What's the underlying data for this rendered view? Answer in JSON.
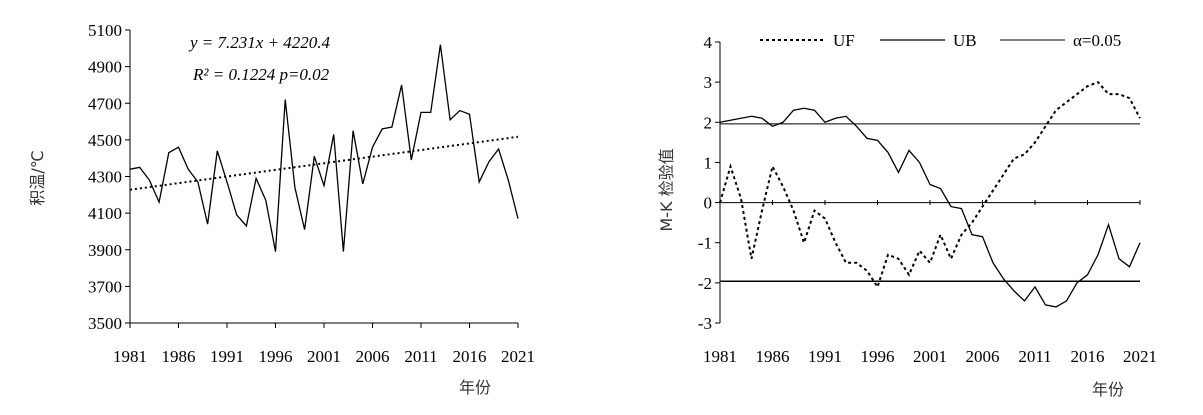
{
  "chart_data": [
    {
      "type": "line",
      "ylabel": "积温/℃",
      "xlabel": "年份",
      "xlim": [
        1981,
        2021
      ],
      "ylim": [
        3500,
        5100
      ],
      "xticks": [
        1981,
        1986,
        1991,
        1996,
        2001,
        2006,
        2011,
        2016,
        2021
      ],
      "yticks": [
        3500,
        3700,
        3900,
        4100,
        4300,
        4500,
        4700,
        4900,
        5100
      ],
      "equation": "y = 7.231x + 4220.4",
      "r2_label": "R² = 0.1224 p=0.02",
      "x": [
        1981,
        1982,
        1983,
        1984,
        1985,
        1986,
        1987,
        1988,
        1989,
        1990,
        1991,
        1992,
        1993,
        1994,
        1995,
        1996,
        1997,
        1998,
        1999,
        2000,
        2001,
        2002,
        2003,
        2004,
        2005,
        2006,
        2007,
        2008,
        2009,
        2010,
        2011,
        2012,
        2013,
        2014,
        2015,
        2016,
        2017,
        2018,
        2019,
        2020,
        2021
      ],
      "series": [
        {
          "style": "solid",
          "values": [
            4340,
            4350,
            4280,
            4160,
            4430,
            4460,
            4340,
            4270,
            4040,
            4440,
            4270,
            4090,
            4030,
            4290,
            4170,
            3890,
            4720,
            4240,
            4010,
            4410,
            4250,
            4530,
            3890,
            4550,
            4260,
            4460,
            4560,
            4570,
            4800,
            4390,
            4650,
            4650,
            5020,
            4610,
            4660,
            4640,
            4270,
            4380,
            4450,
            4280,
            4070
          ]
        },
        {
          "style": "dotted",
          "trend": true,
          "values_at_limits": [
            4227.6,
            4516.9
          ]
        }
      ]
    },
    {
      "type": "line",
      "ylabel": "M-K 检验值",
      "xlabel": "年份",
      "xlim": [
        1981,
        2021
      ],
      "ylim": [
        -3,
        4
      ],
      "xticks": [
        1981,
        1986,
        1991,
        1996,
        2001,
        2006,
        2011,
        2016,
        2021
      ],
      "yticks": [
        -3,
        -2,
        -1,
        0,
        1,
        2,
        3,
        4
      ],
      "significance": 1.96,
      "x": [
        1981,
        1982,
        1983,
        1984,
        1985,
        1986,
        1987,
        1988,
        1989,
        1990,
        1991,
        1992,
        1993,
        1994,
        1995,
        1996,
        1997,
        1998,
        1999,
        2000,
        2001,
        2002,
        2003,
        2004,
        2005,
        2006,
        2007,
        2008,
        2009,
        2010,
        2011,
        2012,
        2013,
        2014,
        2015,
        2016,
        2017,
        2018,
        2019,
        2020,
        2021
      ],
      "series": [
        {
          "name": "UF",
          "style": "dotted",
          "values": [
            0,
            0.9,
            0.1,
            -1.4,
            -0.2,
            0.9,
            0.4,
            -0.2,
            -1.0,
            -0.2,
            -0.4,
            -1.0,
            -1.5,
            -1.5,
            -1.7,
            -2.1,
            -1.3,
            -1.4,
            -1.8,
            -1.2,
            -1.5,
            -0.8,
            -1.4,
            -0.8,
            -0.5,
            -0.1,
            0.3,
            0.7,
            1.1,
            1.2,
            1.5,
            1.9,
            2.3,
            2.5,
            2.7,
            2.9,
            3.0,
            2.7,
            2.7,
            2.6,
            2.1
          ]
        },
        {
          "name": "UB",
          "style": "solid",
          "values": [
            2.0,
            2.05,
            2.1,
            2.15,
            2.1,
            1.9,
            2.0,
            2.3,
            2.35,
            2.3,
            2.0,
            2.1,
            2.15,
            1.9,
            1.6,
            1.55,
            1.25,
            0.75,
            1.3,
            1.0,
            0.45,
            0.35,
            -0.1,
            -0.15,
            -0.8,
            -0.85,
            -1.5,
            -1.9,
            -2.2,
            -2.45,
            -2.1,
            -2.55,
            -2.6,
            -2.45,
            -2.0,
            -1.8,
            -1.3,
            -0.55,
            -1.4,
            -1.6,
            -1.0
          ]
        },
        {
          "name": "α=0.05",
          "style": "thin-solid"
        }
      ]
    }
  ]
}
